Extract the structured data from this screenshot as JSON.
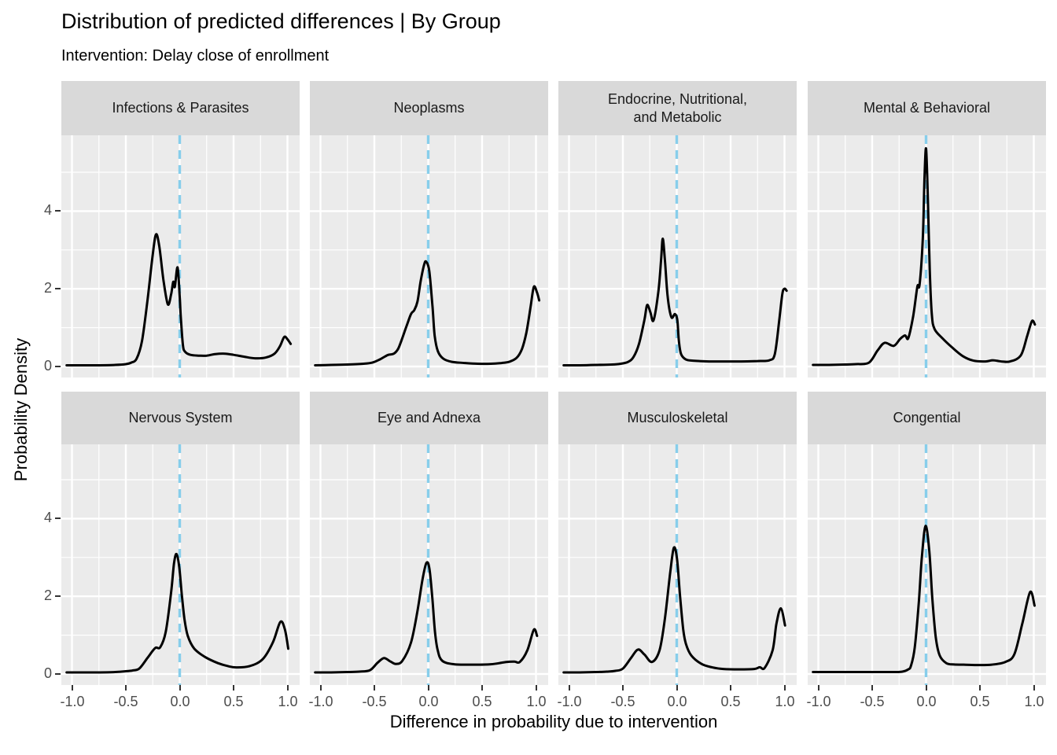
{
  "title": "Distribution of predicted differences | By Group",
  "subtitle": "Intervention: Delay close of enrollment",
  "colors": {
    "panel_background": "#ebebeb",
    "strip_background": "#d9d9d9",
    "gridline": "#ffffff",
    "curve": "#000000",
    "reference_line": "#87ceeb",
    "axis_text": "#4d4d4d",
    "strip_text": "#1a1a1a",
    "title_text": "#000000"
  },
  "chart_data": {
    "type": "line",
    "subtype": "faceted-density",
    "title": "Distribution of predicted differences | By Group",
    "subtitle": "Intervention: Delay close of enrollment",
    "xlabel": "Difference in probability due to intervention",
    "ylabel": "Probability Density",
    "xlim": [
      -1.1,
      1.1
    ],
    "ylim": [
      -0.28,
      5.95
    ],
    "grid": {
      "major": true,
      "minor": true
    },
    "legend": "none",
    "x_ticks": [
      {
        "v": -1.0,
        "label": "-1.0"
      },
      {
        "v": -0.5,
        "label": "-0.5"
      },
      {
        "v": 0.0,
        "label": "0.0"
      },
      {
        "v": 0.5,
        "label": "0.5"
      },
      {
        "v": 1.0,
        "label": "1.0"
      }
    ],
    "y_ticks": [
      {
        "v": 0,
        "label": "0"
      },
      {
        "v": 2,
        "label": "2"
      },
      {
        "v": 4,
        "label": "4"
      }
    ],
    "x_minor_gridlines": [
      -0.75,
      -0.25,
      0.25,
      0.75
    ],
    "y_minor_gridlines": [
      1,
      3,
      5
    ],
    "reference_line_x": 0,
    "facets": [
      {
        "label": "Infections & Parasites",
        "points": [
          [
            -1.05,
            0.03
          ],
          [
            -0.9,
            0.03
          ],
          [
            -0.75,
            0.03
          ],
          [
            -0.6,
            0.04
          ],
          [
            -0.5,
            0.06
          ],
          [
            -0.45,
            0.1
          ],
          [
            -0.4,
            0.2
          ],
          [
            -0.35,
            0.66
          ],
          [
            -0.3,
            1.68
          ],
          [
            -0.25,
            2.89
          ],
          [
            -0.22,
            3.4
          ],
          [
            -0.19,
            3.1
          ],
          [
            -0.15,
            2.21
          ],
          [
            -0.11,
            1.6
          ],
          [
            -0.08,
            1.85
          ],
          [
            -0.06,
            2.18
          ],
          [
            -0.045,
            2.05
          ],
          [
            -0.02,
            2.55
          ],
          [
            0.0,
            1.8
          ],
          [
            0.01,
            1.27
          ],
          [
            0.03,
            0.55
          ],
          [
            0.05,
            0.38
          ],
          [
            0.1,
            0.3
          ],
          [
            0.18,
            0.28
          ],
          [
            0.25,
            0.28
          ],
          [
            0.33,
            0.32
          ],
          [
            0.42,
            0.33
          ],
          [
            0.5,
            0.3
          ],
          [
            0.6,
            0.25
          ],
          [
            0.7,
            0.21
          ],
          [
            0.8,
            0.23
          ],
          [
            0.88,
            0.33
          ],
          [
            0.93,
            0.52
          ],
          [
            0.97,
            0.76
          ],
          [
            1.0,
            0.7
          ],
          [
            1.03,
            0.58
          ]
        ]
      },
      {
        "label": "Neoplasms",
        "points": [
          [
            -1.05,
            0.03
          ],
          [
            -0.9,
            0.04
          ],
          [
            -0.75,
            0.05
          ],
          [
            -0.6,
            0.07
          ],
          [
            -0.52,
            0.1
          ],
          [
            -0.45,
            0.18
          ],
          [
            -0.4,
            0.26
          ],
          [
            -0.37,
            0.3
          ],
          [
            -0.32,
            0.33
          ],
          [
            -0.28,
            0.45
          ],
          [
            -0.25,
            0.66
          ],
          [
            -0.2,
            1.05
          ],
          [
            -0.16,
            1.35
          ],
          [
            -0.13,
            1.45
          ],
          [
            -0.1,
            1.67
          ],
          [
            -0.07,
            2.2
          ],
          [
            -0.04,
            2.6
          ],
          [
            -0.02,
            2.7
          ],
          [
            0.01,
            2.45
          ],
          [
            0.04,
            1.53
          ],
          [
            0.06,
            0.79
          ],
          [
            0.09,
            0.39
          ],
          [
            0.14,
            0.2
          ],
          [
            0.22,
            0.12
          ],
          [
            0.34,
            0.09
          ],
          [
            0.46,
            0.07
          ],
          [
            0.58,
            0.07
          ],
          [
            0.68,
            0.09
          ],
          [
            0.75,
            0.12
          ],
          [
            0.82,
            0.22
          ],
          [
            0.87,
            0.45
          ],
          [
            0.91,
            0.86
          ],
          [
            0.95,
            1.53
          ],
          [
            0.98,
            2.05
          ],
          [
            1.01,
            1.9
          ],
          [
            1.03,
            1.7
          ]
        ]
      },
      {
        "label": "Endocrine, Nutritional,\nand Metabolic",
        "points": [
          [
            -1.05,
            0.03
          ],
          [
            -0.9,
            0.03
          ],
          [
            -0.75,
            0.04
          ],
          [
            -0.6,
            0.05
          ],
          [
            -0.52,
            0.07
          ],
          [
            -0.45,
            0.12
          ],
          [
            -0.4,
            0.25
          ],
          [
            -0.35,
            0.59
          ],
          [
            -0.3,
            1.2
          ],
          [
            -0.275,
            1.58
          ],
          [
            -0.245,
            1.4
          ],
          [
            -0.215,
            1.19
          ],
          [
            -0.17,
            1.94
          ],
          [
            -0.145,
            2.75
          ],
          [
            -0.13,
            3.29
          ],
          [
            -0.11,
            2.75
          ],
          [
            -0.085,
            1.81
          ],
          [
            -0.05,
            1.27
          ],
          [
            -0.017,
            1.35
          ],
          [
            0.005,
            1.2
          ],
          [
            0.02,
            0.66
          ],
          [
            0.04,
            0.32
          ],
          [
            0.085,
            0.18
          ],
          [
            0.15,
            0.15
          ],
          [
            0.3,
            0.13
          ],
          [
            0.45,
            0.13
          ],
          [
            0.6,
            0.13
          ],
          [
            0.75,
            0.14
          ],
          [
            0.86,
            0.16
          ],
          [
            0.91,
            0.32
          ],
          [
            0.95,
            1.15
          ],
          [
            0.98,
            1.87
          ],
          [
            1.0,
            2.0
          ],
          [
            1.02,
            1.95
          ]
        ]
      },
      {
        "label": "Mental & Behavioral",
        "points": [
          [
            -1.05,
            0.04
          ],
          [
            -0.9,
            0.04
          ],
          [
            -0.75,
            0.05
          ],
          [
            -0.65,
            0.06
          ],
          [
            -0.53,
            0.1
          ],
          [
            -0.45,
            0.41
          ],
          [
            -0.385,
            0.61
          ],
          [
            -0.3,
            0.53
          ],
          [
            -0.24,
            0.71
          ],
          [
            -0.195,
            0.8
          ],
          [
            -0.165,
            0.73
          ],
          [
            -0.12,
            1.29
          ],
          [
            -0.08,
            2.06
          ],
          [
            -0.06,
            2.11
          ],
          [
            -0.03,
            3.31
          ],
          [
            -0.015,
            4.79
          ],
          [
            0.0,
            5.61
          ],
          [
            0.017,
            4.31
          ],
          [
            0.034,
            2.49
          ],
          [
            0.053,
            1.35
          ],
          [
            0.078,
            0.97
          ],
          [
            0.15,
            0.73
          ],
          [
            0.25,
            0.47
          ],
          [
            0.345,
            0.26
          ],
          [
            0.44,
            0.15
          ],
          [
            0.55,
            0.13
          ],
          [
            0.62,
            0.16
          ],
          [
            0.7,
            0.13
          ],
          [
            0.78,
            0.13
          ],
          [
            0.88,
            0.29
          ],
          [
            0.94,
            0.8
          ],
          [
            0.983,
            1.17
          ],
          [
            1.01,
            1.08
          ]
        ]
      },
      {
        "label": "Nervous System",
        "points": [
          [
            -1.05,
            0.04
          ],
          [
            -0.9,
            0.04
          ],
          [
            -0.75,
            0.04
          ],
          [
            -0.6,
            0.05
          ],
          [
            -0.5,
            0.07
          ],
          [
            -0.44,
            0.09
          ],
          [
            -0.375,
            0.14
          ],
          [
            -0.3,
            0.41
          ],
          [
            -0.25,
            0.6
          ],
          [
            -0.22,
            0.68
          ],
          [
            -0.18,
            0.69
          ],
          [
            -0.13,
            1.08
          ],
          [
            -0.08,
            2.09
          ],
          [
            -0.053,
            2.84
          ],
          [
            -0.03,
            3.09
          ],
          [
            -0.005,
            2.77
          ],
          [
            0.02,
            2.03
          ],
          [
            0.044,
            1.42
          ],
          [
            0.075,
            0.98
          ],
          [
            0.136,
            0.65
          ],
          [
            0.234,
            0.44
          ],
          [
            0.355,
            0.28
          ],
          [
            0.45,
            0.2
          ],
          [
            0.525,
            0.17
          ],
          [
            0.647,
            0.2
          ],
          [
            0.77,
            0.38
          ],
          [
            0.866,
            0.82
          ],
          [
            0.934,
            1.34
          ],
          [
            0.976,
            1.15
          ],
          [
            1.007,
            0.65
          ]
        ]
      },
      {
        "label": "Eye and Adnexa",
        "points": [
          [
            -1.05,
            0.04
          ],
          [
            -0.9,
            0.04
          ],
          [
            -0.75,
            0.05
          ],
          [
            -0.64,
            0.06
          ],
          [
            -0.54,
            0.1
          ],
          [
            -0.47,
            0.29
          ],
          [
            -0.41,
            0.41
          ],
          [
            -0.35,
            0.32
          ],
          [
            -0.3,
            0.26
          ],
          [
            -0.24,
            0.34
          ],
          [
            -0.16,
            0.81
          ],
          [
            -0.1,
            1.62
          ],
          [
            -0.053,
            2.43
          ],
          [
            -0.017,
            2.86
          ],
          [
            0.012,
            2.7
          ],
          [
            0.04,
            1.89
          ],
          [
            0.063,
            1.08
          ],
          [
            0.088,
            0.61
          ],
          [
            0.13,
            0.34
          ],
          [
            0.24,
            0.25
          ],
          [
            0.4,
            0.24
          ],
          [
            0.58,
            0.25
          ],
          [
            0.725,
            0.31
          ],
          [
            0.8,
            0.32
          ],
          [
            0.85,
            0.31
          ],
          [
            0.92,
            0.61
          ],
          [
            0.98,
            1.14
          ],
          [
            1.01,
            0.98
          ]
        ]
      },
      {
        "label": "Musculoskeletal",
        "points": [
          [
            -1.05,
            0.04
          ],
          [
            -0.9,
            0.04
          ],
          [
            -0.75,
            0.05
          ],
          [
            -0.65,
            0.06
          ],
          [
            -0.57,
            0.08
          ],
          [
            -0.5,
            0.14
          ],
          [
            -0.425,
            0.41
          ],
          [
            -0.36,
            0.63
          ],
          [
            -0.3,
            0.5
          ],
          [
            -0.23,
            0.31
          ],
          [
            -0.16,
            0.61
          ],
          [
            -0.11,
            1.42
          ],
          [
            -0.06,
            2.63
          ],
          [
            -0.027,
            3.25
          ],
          [
            0.002,
            2.97
          ],
          [
            0.03,
            2.03
          ],
          [
            0.06,
            1.15
          ],
          [
            0.085,
            0.78
          ],
          [
            0.134,
            0.48
          ],
          [
            0.23,
            0.26
          ],
          [
            0.33,
            0.17
          ],
          [
            0.43,
            0.13
          ],
          [
            0.58,
            0.12
          ],
          [
            0.72,
            0.13
          ],
          [
            0.77,
            0.175
          ],
          [
            0.815,
            0.155
          ],
          [
            0.89,
            0.61
          ],
          [
            0.925,
            1.29
          ],
          [
            0.966,
            1.69
          ],
          [
            1.005,
            1.25
          ]
        ]
      },
      {
        "label": "Congential",
        "points": [
          [
            -1.05,
            0.05
          ],
          [
            -0.9,
            0.05
          ],
          [
            -0.75,
            0.05
          ],
          [
            -0.6,
            0.05
          ],
          [
            -0.45,
            0.05
          ],
          [
            -0.3,
            0.05
          ],
          [
            -0.22,
            0.06
          ],
          [
            -0.165,
            0.12
          ],
          [
            -0.14,
            0.21
          ],
          [
            -0.105,
            0.68
          ],
          [
            -0.068,
            1.82
          ],
          [
            -0.04,
            2.97
          ],
          [
            -0.005,
            3.81
          ],
          [
            0.03,
            3.17
          ],
          [
            0.058,
            1.96
          ],
          [
            0.09,
            0.95
          ],
          [
            0.126,
            0.48
          ],
          [
            0.188,
            0.28
          ],
          [
            0.26,
            0.245
          ],
          [
            0.35,
            0.24
          ],
          [
            0.47,
            0.23
          ],
          [
            0.61,
            0.24
          ],
          [
            0.735,
            0.31
          ],
          [
            0.82,
            0.51
          ],
          [
            0.893,
            1.29
          ],
          [
            0.966,
            2.11
          ],
          [
            1.007,
            1.76
          ]
        ]
      }
    ]
  }
}
